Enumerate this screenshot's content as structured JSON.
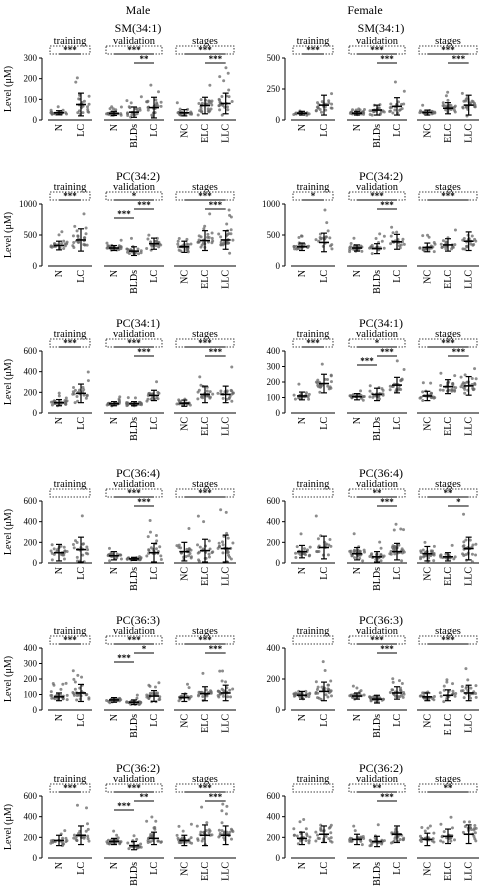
{
  "columns": [
    {
      "sex": "Male"
    },
    {
      "sex": "Female"
    }
  ],
  "group_labels": {
    "training": "training",
    "validation": "validation",
    "stages": "stages"
  },
  "categories": {
    "training": [
      "N",
      "LC"
    ],
    "validation": [
      "N",
      "BLDs",
      "LC"
    ],
    "stages": [
      "NC",
      "ELC",
      "LLC"
    ],
    "stages_female_row5": [
      "NC",
      "E LC",
      "LLC"
    ]
  },
  "ylabels": [
    "Level (μM)",
    "Level (μM)",
    "Level (μM)",
    "Level (μM)",
    "Level (μM)",
    "Level (μM)"
  ],
  "chart_data": [
    {
      "type": "scatter",
      "title": "SM(34:1)",
      "sex": "Male",
      "ylim": [
        0,
        300
      ],
      "yticks": [
        "0",
        "100",
        "200",
        "300"
      ],
      "groups": {
        "training": {
          "means": [
            35,
            75
          ],
          "sds": [
            10,
            55
          ],
          "sig": [
            "***"
          ]
        },
        "validation": {
          "means": [
            32,
            38,
            60
          ],
          "sds": [
            10,
            25,
            50
          ],
          "sig": [
            "***",
            "**"
          ]
        },
        "stages": {
          "means": [
            35,
            70,
            80
          ],
          "sds": [
            15,
            40,
            50
          ],
          "sig": [
            "***",
            "***"
          ]
        }
      }
    },
    {
      "type": "scatter",
      "title": "SM(34:1)",
      "sex": "Female",
      "ylim": [
        0,
        500
      ],
      "yticks": [
        "0",
        "250",
        "500"
      ],
      "groups": {
        "training": {
          "means": [
            55,
            120
          ],
          "sds": [
            15,
            80
          ],
          "sig": [
            "***"
          ]
        },
        "validation": {
          "means": [
            55,
            80,
            110
          ],
          "sds": [
            15,
            40,
            70
          ],
          "sig": [
            "***",
            "***"
          ]
        },
        "stages": {
          "means": [
            60,
            95,
            120
          ],
          "sds": [
            20,
            45,
            80
          ],
          "sig": [
            "***",
            "***"
          ]
        }
      }
    },
    {
      "type": "scatter",
      "title": "PC(34:2)",
      "sex": "Male",
      "ylim": [
        0,
        1000
      ],
      "yticks": [
        "0",
        "500",
        "1000"
      ],
      "groups": {
        "training": {
          "means": [
            330,
            420
          ],
          "sds": [
            70,
            180
          ],
          "sig": [
            "***"
          ]
        },
        "validation": {
          "means": [
            290,
            240,
            360
          ],
          "sds": [
            40,
            70,
            90
          ],
          "sig": [
            "*",
            "***",
            "***"
          ]
        },
        "stages": {
          "means": [
            310,
            410,
            420
          ],
          "sds": [
            90,
            160,
            150
          ],
          "sig": [
            "***",
            "***"
          ]
        }
      }
    },
    {
      "type": "scatter",
      "title": "PC(34:2)",
      "sex": "Female",
      "ylim": [
        0,
        1000
      ],
      "yticks": [
        "0",
        "500",
        "1000"
      ],
      "groups": {
        "training": {
          "means": [
            310,
            380
          ],
          "sds": [
            60,
            150
          ],
          "sig": [
            "*"
          ]
        },
        "validation": {
          "means": [
            290,
            280,
            390
          ],
          "sds": [
            50,
            80,
            120
          ],
          "sig": [
            "***",
            "***"
          ]
        },
        "stages": {
          "means": [
            300,
            340,
            400
          ],
          "sds": [
            70,
            100,
            150
          ],
          "sig": [
            "***"
          ]
        }
      }
    },
    {
      "type": "scatter",
      "title": "PC(34:1)",
      "sex": "Male",
      "ylim": [
        0,
        600
      ],
      "yticks": [
        "0",
        "200",
        "400",
        "600"
      ],
      "groups": {
        "training": {
          "means": [
            100,
            190
          ],
          "sds": [
            30,
            90
          ],
          "sig": [
            "***"
          ]
        },
        "validation": {
          "means": [
            90,
            90,
            170
          ],
          "sds": [
            20,
            20,
            50
          ],
          "sig": [
            "***",
            "***"
          ]
        },
        "stages": {
          "means": [
            95,
            180,
            180
          ],
          "sds": [
            30,
            80,
            80
          ],
          "sig": [
            "***",
            "***"
          ]
        }
      }
    },
    {
      "type": "scatter",
      "title": "PC(34:1)",
      "sex": "Female",
      "ylim": [
        0,
        400
      ],
      "yticks": [
        "0",
        "100",
        "200",
        "300",
        "400"
      ],
      "groups": {
        "training": {
          "means": [
            110,
            190
          ],
          "sds": [
            25,
            60
          ],
          "sig": [
            "***"
          ]
        },
        "validation": {
          "means": [
            105,
            120,
            180
          ],
          "sds": [
            20,
            40,
            50
          ],
          "sig": [
            "*",
            "***",
            "***"
          ]
        },
        "stages": {
          "means": [
            110,
            170,
            175
          ],
          "sds": [
            30,
            45,
            60
          ],
          "sig": [
            "***",
            "***"
          ]
        }
      }
    },
    {
      "type": "scatter",
      "title": "PC(36:4)",
      "sex": "Male",
      "ylim": [
        0,
        600
      ],
      "yticks": [
        "0",
        "200",
        "400",
        "600"
      ],
      "groups": {
        "training": {
          "means": [
            100,
            130
          ],
          "sds": [
            80,
            120
          ],
          "sig": [
            ""
          ]
        },
        "validation": {
          "means": [
            70,
            40,
            100
          ],
          "sds": [
            40,
            15,
            90
          ],
          "sig": [
            "***",
            "***"
          ]
        },
        "stages": {
          "means": [
            110,
            120,
            140
          ],
          "sds": [
            90,
            110,
            130
          ],
          "sig": [
            "***"
          ]
        }
      }
    },
    {
      "type": "scatter",
      "title": "PC(36:4)",
      "sex": "Female",
      "ylim": [
        0,
        600
      ],
      "yticks": [
        "0",
        "200",
        "400",
        "600"
      ],
      "groups": {
        "training": {
          "means": [
            110,
            150
          ],
          "sds": [
            60,
            110
          ],
          "sig": [
            ""
          ]
        },
        "validation": {
          "means": [
            90,
            60,
            110
          ],
          "sds": [
            60,
            50,
            80
          ],
          "sig": [
            "**",
            "***"
          ]
        },
        "stages": {
          "means": [
            90,
            60,
            140
          ],
          "sds": [
            70,
            40,
            110
          ],
          "sig": [
            "**",
            "*"
          ]
        }
      }
    },
    {
      "type": "scatter",
      "title": "PC(36:3)",
      "sex": "Male",
      "ylim": [
        0,
        400
      ],
      "yticks": [
        "0",
        "100",
        "200",
        "300",
        "400"
      ],
      "groups": {
        "training": {
          "means": [
            85,
            110
          ],
          "sds": [
            25,
            55
          ],
          "sig": [
            "***"
          ]
        },
        "validation": {
          "means": [
            65,
            50,
            90
          ],
          "sds": [
            15,
            15,
            35
          ],
          "sig": [
            "***",
            "*",
            "***"
          ]
        },
        "stages": {
          "means": [
            80,
            105,
            110
          ],
          "sds": [
            25,
            45,
            50
          ],
          "sig": [
            "***",
            "***"
          ]
        }
      }
    },
    {
      "type": "scatter",
      "title": "PC(36:3)",
      "sex": "Female",
      "ylim": [
        0,
        400
      ],
      "yticks": [
        "0",
        "200",
        "400"
      ],
      "groups": {
        "training": {
          "means": [
            95,
            120
          ],
          "sds": [
            25,
            60
          ],
          "sig": [
            ""
          ]
        },
        "validation": {
          "means": [
            90,
            70,
            110
          ],
          "sds": [
            20,
            25,
            40
          ],
          "sig": [
            "***",
            "***"
          ]
        },
        "stages": {
          "means": [
            85,
            95,
            110
          ],
          "sds": [
            25,
            35,
            50
          ],
          "sig": [
            "***"
          ]
        }
      }
    },
    {
      "type": "scatter",
      "title": "PC(36:2)",
      "sex": "Male",
      "ylim": [
        0,
        600
      ],
      "yticks": [
        "0",
        "200",
        "400",
        "600"
      ],
      "groups": {
        "training": {
          "means": [
            170,
            220
          ],
          "sds": [
            50,
            90
          ],
          "sig": [
            "***"
          ]
        },
        "validation": {
          "means": [
            160,
            120,
            190
          ],
          "sds": [
            30,
            40,
            60
          ],
          "sig": [
            "***",
            "**",
            "***"
          ]
        },
        "stages": {
          "means": [
            170,
            220,
            220
          ],
          "sds": [
            50,
            100,
            90
          ],
          "sig": [
            "***",
            "***"
          ]
        }
      }
    },
    {
      "type": "scatter",
      "title": "PC(36:2)",
      "sex": "Female",
      "ylim": [
        0,
        600
      ],
      "yticks": [
        "0",
        "200",
        "400",
        "600"
      ],
      "groups": {
        "training": {
          "means": [
            190,
            230
          ],
          "sds": [
            60,
            80
          ],
          "sig": [
            ""
          ]
        },
        "validation": {
          "means": [
            180,
            160,
            230
          ],
          "sds": [
            50,
            50,
            80
          ],
          "sig": [
            "**",
            "***"
          ]
        },
        "stages": {
          "means": [
            180,
            210,
            230
          ],
          "sds": [
            60,
            70,
            90
          ],
          "sig": [
            "**"
          ]
        }
      }
    }
  ]
}
